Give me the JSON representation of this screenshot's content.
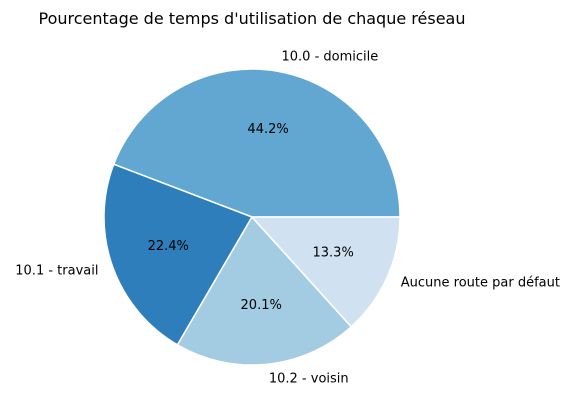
{
  "chart_data": {
    "type": "pie",
    "title": "Pourcentage de temps d'utilisation de chaque réseau",
    "series": [
      {
        "label": "10.0 - domicile",
        "value": 44.2,
        "pct_label": "44.2%",
        "color": "#61a7d2"
      },
      {
        "label": "10.1 - travail",
        "value": 22.4,
        "pct_label": "22.4%",
        "color": "#2f7ebc"
      },
      {
        "label": "10.2 - voisin",
        "value": 20.1,
        "pct_label": "20.1%",
        "color": "#a3cbe2"
      },
      {
        "label": "Aucune route par défaut",
        "value": 13.3,
        "pct_label": "13.3%",
        "color": "#d0e2f2"
      }
    ],
    "start_angle_deg": 0,
    "direction": "counterclockwise",
    "legend": "none"
  }
}
